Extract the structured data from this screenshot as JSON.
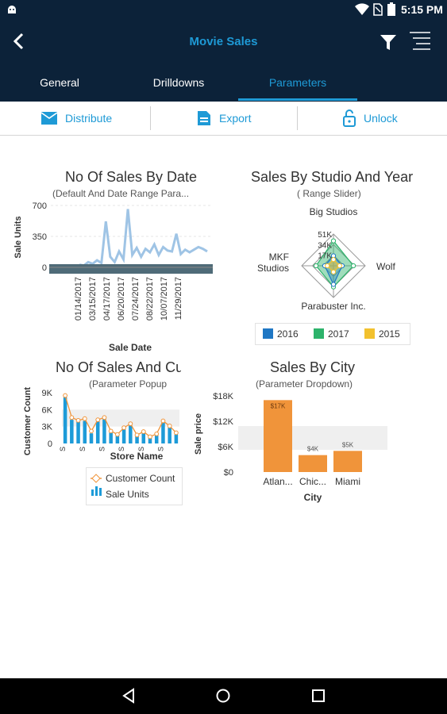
{
  "status": {
    "time": "5:15 PM"
  },
  "header": {
    "title": "Movie Sales"
  },
  "tabs": [
    {
      "label": "General",
      "active": false
    },
    {
      "label": "Drilldowns",
      "active": false
    },
    {
      "label": "Parameters",
      "active": true
    }
  ],
  "toolbar": {
    "distribute": "Distribute",
    "export": "Export",
    "unlock": "Unlock"
  },
  "colors": {
    "header_bg": "#0c2239",
    "accent": "#1e9ad6",
    "bar_orange": "#f0943a",
    "line_blue": "#9fc4e5",
    "series_2016": "#1f77c4",
    "series_2017": "#2db36b",
    "series_2015": "#f2c12e"
  },
  "chart_data": [
    {
      "type": "line",
      "title": "No Of Sales By Date",
      "subtitle": "(Default And Date Range Para...",
      "xlabel": "Sale Date",
      "ylabel": "Sale Units",
      "ylim": [
        0,
        700
      ],
      "yticks": [
        "700",
        "350",
        "0"
      ],
      "xticks": [
        "01/14/2017",
        "03/15/2017",
        "04/17/2017",
        "06/20/2017",
        "07/24/2017",
        "08/22/2017",
        "10/07/2017",
        "11/29/2017"
      ],
      "values": [
        30,
        20,
        60,
        40,
        80,
        50,
        520,
        120,
        60,
        180,
        90,
        660,
        140,
        220,
        120,
        210,
        170,
        260,
        140,
        230,
        190,
        180,
        380,
        150,
        200,
        170,
        200,
        230,
        210,
        180
      ]
    },
    {
      "type": "radar",
      "title": "Sales By Studio And Year",
      "subtitle": "( Range Slider)",
      "axes": [
        "Big Studios",
        "Wolf",
        "Parabuster Inc.",
        "MKF Studios"
      ],
      "ring_labels": [
        "51K",
        "34K",
        "17K"
      ],
      "series": [
        {
          "name": "2016",
          "values": [
            16,
            14,
            30,
            14
          ]
        },
        {
          "name": "2017",
          "values": [
            40,
            32,
            34,
            28
          ]
        },
        {
          "name": "2015",
          "values": [
            10,
            10,
            10,
            10
          ]
        }
      ]
    },
    {
      "type": "bar",
      "title": "No Of Sales And Cu",
      "subtitle": "(Parameter Popup",
      "xlabel": "Store Name",
      "ylabel": "Customer Count",
      "ylim": [
        0,
        9000
      ],
      "yticks": [
        "9K",
        "6K",
        "3K",
        "0"
      ],
      "xtick_glyph": "S",
      "series": [
        {
          "name": "Customer Count",
          "values": [
            8500,
            4600,
            4100,
            4400,
            2200,
            4200,
            4600,
            2200,
            1600,
            2800,
            3500,
            1500,
            2100,
            1200,
            1700,
            4000,
            3100,
            1900
          ]
        },
        {
          "name": "Sale Units",
          "values": [
            8200,
            4200,
            3800,
            4000,
            1800,
            3900,
            4300,
            1900,
            1400,
            2500,
            3200,
            1300,
            1800,
            1000,
            1500,
            3700,
            2800,
            1600
          ]
        }
      ]
    },
    {
      "type": "bar",
      "title": "Sales By City",
      "subtitle": "(Parameter Dropdown)",
      "xlabel": "City",
      "ylabel": "Sale price",
      "ylim": [
        0,
        18000
      ],
      "yticks": [
        "$18K",
        "$12K",
        "$6K",
        "$0"
      ],
      "categories": [
        "Atlan...",
        "Chic...",
        "Miami"
      ],
      "values": [
        17000,
        4000,
        5000
      ],
      "data_labels": [
        "$17K",
        "$4K",
        "$5K"
      ]
    }
  ]
}
